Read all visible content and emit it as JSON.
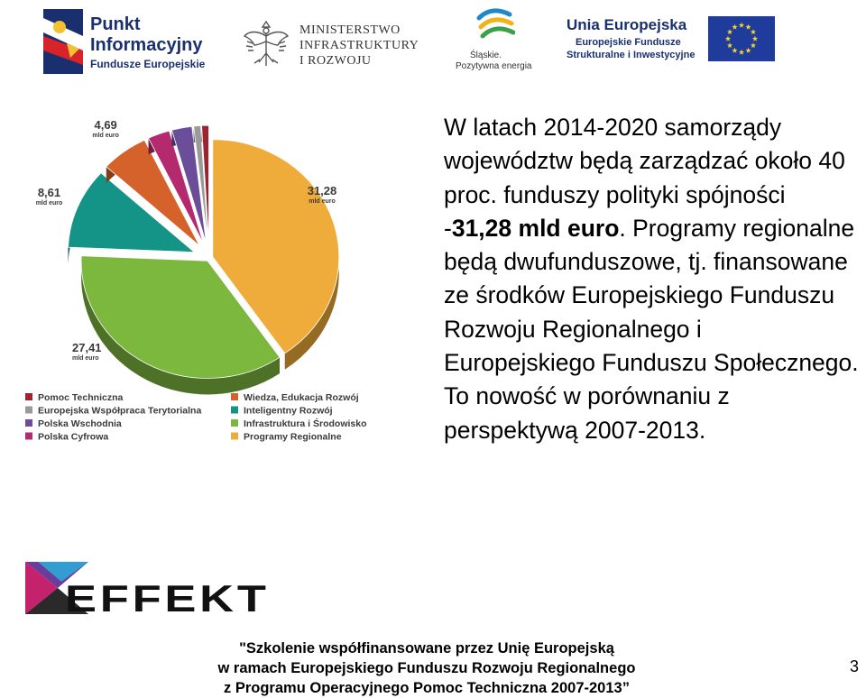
{
  "header": {
    "logo_pi": {
      "line1": "Punkt",
      "line2": "Informacyjny",
      "line3": "Fundusze Europejskie"
    },
    "logo_ministry": {
      "line1": "MINISTERSTWO",
      "line2": "INFRASTRUKTURY",
      "line3": "I ROZWOJU"
    },
    "logo_slaskie": {
      "line1": "Śląskie.",
      "line2": "Pozytywna energia"
    },
    "logo_eu": {
      "line1": "Unia Europejska",
      "line2": "Europejskie Fundusze",
      "line3": "Strukturalne i Inwestycyjne"
    }
  },
  "chart_data": {
    "type": "pie",
    "unit": "mld euro",
    "slices": [
      {
        "label": "Programy Regionalne",
        "value": 31.28,
        "value_text": "31,28",
        "color": "#f0ac3a"
      },
      {
        "label": "Infrastruktura i Środowisko",
        "value": 27.41,
        "value_text": "27,41",
        "color": "#7cb73e"
      },
      {
        "label": "Inteligentny Rozwój",
        "value": 8.61,
        "value_text": "8,61",
        "color": "#139486"
      },
      {
        "label": "Wiedza, Edukacja Rozwój",
        "value": 4.69,
        "value_text": "4,69",
        "color": "#d4622a"
      },
      {
        "label": "Polska Cyfrowa",
        "value": 2.17,
        "value_text": "2,17",
        "color": "#b52a6e"
      },
      {
        "label": "Polska Wschodnia",
        "value": 2.0,
        "value_text": "2,00",
        "color": "#6c4d9a"
      },
      {
        "label": "Europejska Współpraca Terytorialna",
        "value": 0.7,
        "value_text": "0,7",
        "color": "#9a9a9a"
      },
      {
        "label": "Pomoc Techniczna",
        "value": 0.7,
        "value_text": "0,7",
        "color": "#9b2430"
      }
    ],
    "legend_order": [
      "Pomoc Techniczna",
      "Wiedza, Edukacja Rozwój",
      "Europejska Współpraca Terytorialna",
      "Inteligentny Rozwój",
      "Polska Wschodnia",
      "Infrastruktura i Środowisko",
      "Polska Cyfrowa",
      "Programy Regionalne"
    ],
    "legend_placement": "bottom"
  },
  "paragraph": {
    "part1": "W latach 2014-2020 samorządy województw będą zarządzać około 40 proc. funduszy polityki spójności -",
    "bold": "31,28 mld euro",
    "part2": ". Programy regionalne będą dwufunduszowe, tj. finansowane ze środków Europejskiego Funduszu Rozwoju Regionalnego i Europejskiego Funduszu Społecznego. To nowość w porównaniu z perspektywą 2007-2013."
  },
  "logo_effekt": {
    "text": "EFFEKT"
  },
  "footer": {
    "line1": "\"Szkolenie współfinansowane przez Unię Europejską",
    "line2": "w ramach Europejskiego Funduszu Rozwoju Regionalnego",
    "line3": "z Programu Operacyjnego Pomoc Techniczna 2007-2013”"
  },
  "page_number": "3"
}
